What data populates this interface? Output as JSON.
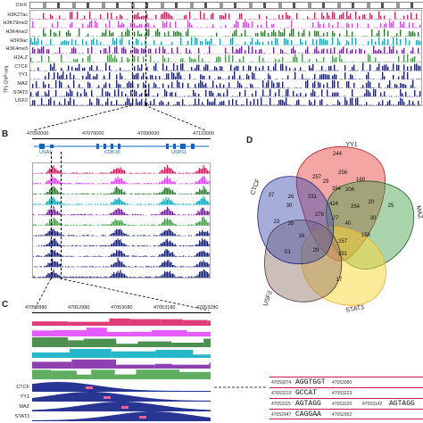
{
  "panel_a": {
    "chrom_label": "ChrX",
    "histone_tracks": [
      {
        "label": "H3K27ac",
        "color": "#d81b60"
      },
      {
        "label": "H3K79me2",
        "color": "#e040fb"
      },
      {
        "label": "H3K4me2",
        "color": "#2e7d32"
      },
      {
        "label": "H3K9ac",
        "color": "#00acc1"
      },
      {
        "label": "H3K4me3",
        "color": "#7b1fa2"
      },
      {
        "label": "H2A.Z",
        "color": "#43a047"
      }
    ],
    "tf_tracks": [
      {
        "label": "CTCF",
        "color": "#1a237e"
      },
      {
        "label": "YY1",
        "color": "#1a237e"
      },
      {
        "label": "MAZ",
        "color": "#1a237e"
      },
      {
        "label": "STAT3",
        "color": "#1a237e"
      },
      {
        "label": "USF2",
        "color": "#1a237e"
      }
    ],
    "group_label": "TFs ChIP-seq"
  },
  "panel_b": {
    "letter": "B",
    "coords": [
      "47050000",
      "47070000",
      "47090000",
      "47110000"
    ],
    "genes": [
      "USA1",
      "CDK16",
      "USP11"
    ]
  },
  "panel_c": {
    "letter": "C",
    "coords": [
      "47052880",
      "47052980",
      "47053080",
      "47053180",
      "47053280"
    ],
    "tf_labels": [
      "CTCF",
      "YY1",
      "MAZ",
      "STAT3"
    ],
    "motifs": [
      {
        "start": "47053074",
        "seq": "AGGTGGT",
        "end": "47053080"
      },
      {
        "start": "47053219",
        "seq": "GCCAT",
        "end": "47053223"
      },
      {
        "start": "47053115",
        "seq": "AGTAGG",
        "end": "47053120",
        "start2": "47053142",
        "seq2": "AGTAGG"
      },
      {
        "start": "47052947",
        "seq": "CAGGAA",
        "end": "47052952"
      }
    ]
  },
  "panel_d": {
    "letter": "D",
    "sets": [
      {
        "name": "YY1",
        "color": "#d32f2f"
      },
      {
        "name": "MAZ",
        "color": "#2e7d32"
      },
      {
        "name": "STAT3",
        "color": "#fbc02d"
      },
      {
        "name": "USF2",
        "color": "#8d6e63"
      },
      {
        "name": "CTCF",
        "color": "#303f9f"
      }
    ],
    "counts": [
      "244",
      "257",
      "256",
      "169",
      "25",
      "204",
      "29",
      "354",
      "37",
      "26",
      "331",
      "424",
      "254",
      "20",
      "278",
      "27",
      "40",
      "23",
      "35",
      "16",
      "257",
      "156",
      "191",
      "17",
      "30",
      "53",
      "29",
      "30"
    ]
  }
}
